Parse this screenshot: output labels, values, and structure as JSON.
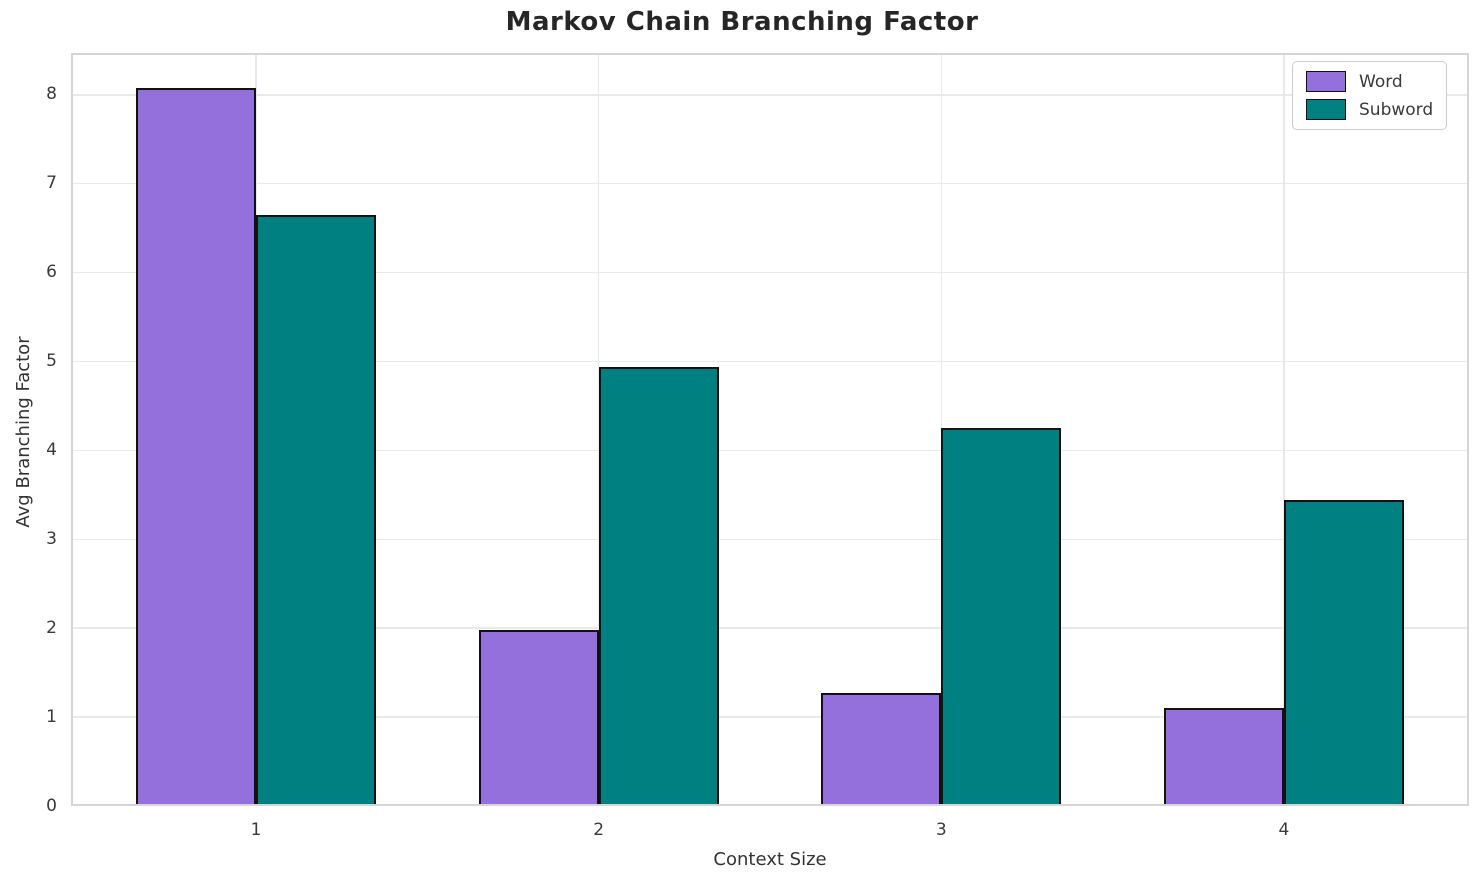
{
  "chart_data": {
    "type": "bar",
    "title": "Markov Chain Branching Factor",
    "xlabel": "Context Size",
    "ylabel": "Avg Branching Factor",
    "categories": [
      "1",
      "2",
      "3",
      "4"
    ],
    "series": [
      {
        "name": "Word",
        "color": "#9370DB",
        "values": [
          8.08,
          1.98,
          1.27,
          1.1
        ]
      },
      {
        "name": "Subword",
        "color": "#008080",
        "values": [
          6.65,
          4.94,
          4.25,
          3.44
        ]
      }
    ],
    "yticks": [
      "0",
      "1",
      "2",
      "3",
      "4",
      "5",
      "6",
      "7",
      "8"
    ],
    "ylim": [
      0,
      8.47
    ],
    "xlim": [
      0.46,
      4.54
    ],
    "bar_width": 0.35,
    "bar_edge_color": "#111111",
    "grid": true,
    "grid_color": "#e9e9e9",
    "spine_color": "#d5d5d5",
    "tick_color": "#3a3a3a",
    "title_color": "#262626",
    "label_color": "#333333",
    "legend_position": "upper right"
  }
}
